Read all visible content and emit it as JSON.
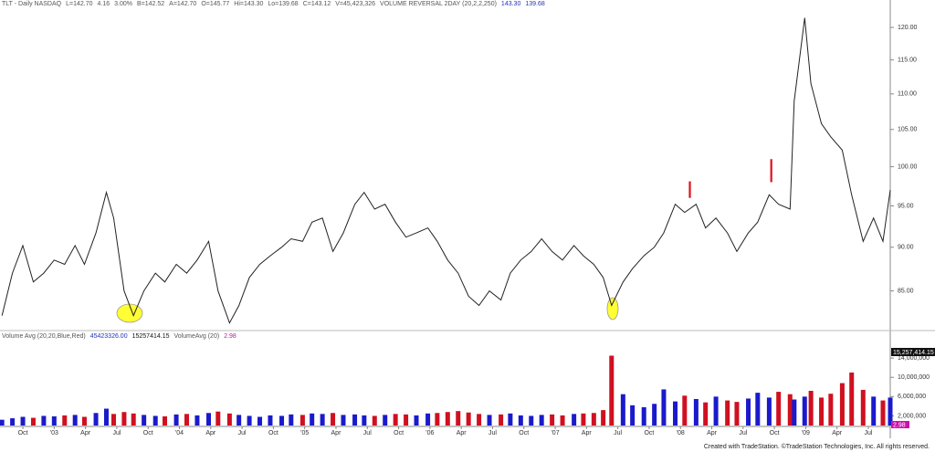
{
  "chart_data": {
    "type": "line",
    "header": [
      "TLT - Daily  NASDAQ",
      "L=142.70",
      "4.16",
      "3.00%",
      "B=142.52",
      "A=142.70",
      "O=145.77",
      "Hi=143.30",
      "Lo=139.68",
      "C=143.12",
      "V=45,423,326",
      "VOLUME REVERSAL 2DAY (20,2,2,250)",
      "143.30",
      "139.68"
    ],
    "log_scale": true,
    "line_color": "#222222",
    "x": [
      -2.0,
      -1.0,
      0,
      1.0,
      2.0,
      3.0,
      4.0,
      5.0,
      5.9,
      7.0,
      8.0,
      8.7,
      9.7,
      10.6,
      11.6,
      12.7,
      13.6,
      14.7,
      15.7,
      16.7,
      17.8,
      18.7,
      19.8,
      20.7,
      21.7,
      22.7,
      23.7,
      24.8,
      25.7,
      26.8,
      27.7,
      28.7,
      29.7,
      30.7,
      31.8,
      32.7,
      33.7,
      34.7,
      35.7,
      36.7,
      37.7,
      38.8,
      39.7,
      40.7,
      41.7,
      42.7,
      43.7,
      44.7,
      45.8,
      46.7,
      47.7,
      48.7,
      49.7,
      50.7,
      51.7,
      52.8,
      53.7,
      54.7,
      55.6,
      56.4,
      57.5,
      58.4,
      59.5,
      60.5,
      61.4,
      62.5,
      63.4,
      64.5,
      65.4,
      66.4,
      67.5,
      68.4,
      69.5,
      70.4,
      71.5,
      72.4,
      73.5,
      73.9,
      74.9,
      75.5,
      76.5,
      77.4,
      78.5,
      79.4,
      80.5,
      81.5,
      82.4,
      83.1
    ],
    "series": [
      {
        "values": [
          82.3,
          87,
          90.2,
          86,
          87,
          88.5,
          88,
          90.2,
          88,
          91.7,
          96.7,
          93.5,
          85,
          82.3,
          85,
          87,
          86,
          88,
          87,
          88.5,
          90.7,
          85,
          81.5,
          83.4,
          86.5,
          88,
          89,
          90,
          91,
          90.7,
          93,
          93.5,
          89.5,
          91.7,
          95.2,
          96.7,
          94.6,
          95.2,
          93,
          91.2,
          91.7,
          92.3,
          90.7,
          88.5,
          87,
          84.4,
          83.4,
          85,
          84,
          87,
          88.5,
          89.5,
          91,
          89.5,
          88.5,
          90.2,
          89,
          88,
          86.5,
          83.4,
          86,
          87.5,
          89,
          90,
          91.7,
          95.2,
          94.2,
          95.2,
          92.3,
          93.5,
          91.7,
          89.5,
          91.7,
          93,
          96.4,
          95.2,
          94.6,
          109,
          121.5,
          111.5,
          105.8,
          104,
          102.2,
          96.4,
          90.7,
          93.5,
          90.7,
          97
        ]
      }
    ],
    "signals": [
      {
        "x": 63.9,
        "low": 96,
        "high": 98.1
      },
      {
        "x": 71.7,
        "low": 98,
        "high": 101
      }
    ],
    "signal_color": "#e0101a",
    "xlim": [
      -2.19,
      83.1
    ],
    "xticks": [
      {
        "value": 0,
        "label": "Oct"
      },
      {
        "value": 3,
        "label": "'03"
      },
      {
        "value": 6,
        "label": "Apr"
      },
      {
        "value": 9,
        "label": "Jul"
      },
      {
        "value": 12,
        "label": "Oct"
      },
      {
        "value": 15,
        "label": "'04"
      },
      {
        "value": 18,
        "label": "Apr"
      },
      {
        "value": 21,
        "label": "Jul"
      },
      {
        "value": 24,
        "label": "Oct"
      },
      {
        "value": 27,
        "label": "'05"
      },
      {
        "value": 30,
        "label": "Apr"
      },
      {
        "value": 33,
        "label": "Jul"
      },
      {
        "value": 36,
        "label": "Oct"
      },
      {
        "value": 39,
        "label": "'06"
      },
      {
        "value": 42,
        "label": "Apr"
      },
      {
        "value": 45,
        "label": "Jul"
      },
      {
        "value": 48,
        "label": "Oct"
      },
      {
        "value": 51,
        "label": "'07"
      },
      {
        "value": 54,
        "label": "Apr"
      },
      {
        "value": 57,
        "label": "Jul"
      },
      {
        "value": 60,
        "label": "Oct"
      },
      {
        "value": 63,
        "label": "'08"
      },
      {
        "value": 66,
        "label": "Apr"
      },
      {
        "value": 69,
        "label": "Jul"
      },
      {
        "value": 72,
        "label": "Oct"
      },
      {
        "value": 75,
        "label": "'09"
      },
      {
        "value": 78,
        "label": "Apr"
      },
      {
        "value": 81,
        "label": "Jul"
      }
    ],
    "ylim": [
      80.7,
      123.2
    ],
    "yticks": [
      {
        "value": 85,
        "label": "85.00"
      },
      {
        "value": 90,
        "label": "90.00"
      },
      {
        "value": 95,
        "label": "95.00"
      },
      {
        "value": 100,
        "label": "100.00"
      },
      {
        "value": 105,
        "label": "105.00"
      },
      {
        "value": 110,
        "label": "110.00"
      },
      {
        "value": 115,
        "label": "115.00"
      },
      {
        "value": 120,
        "label": "120.00"
      }
    ],
    "volume": {
      "header": [
        "Volume Avg (20,20,Blue,Red)",
        "45423326.00",
        "15257414.15",
        "VolumeAvg (20)",
        "2.98"
      ],
      "last_label": "15,257,414.15",
      "ratio_label": "2.98",
      "up_color": "#1a1acc",
      "down_color": "#d01020",
      "values": [
        1200000,
        1500000,
        1800000,
        1600000,
        2000000,
        1900000,
        2100000,
        2200000,
        1800000,
        2600000,
        3500000,
        2400000,
        2800000,
        2500000,
        2200000,
        2000000,
        1900000,
        2300000,
        2400000,
        2100000,
        2600000,
        2900000,
        2500000,
        2200000,
        2000000,
        1800000,
        2100000,
        2000000,
        2300000,
        2200000,
        2500000,
        2400000,
        2600000,
        2200000,
        2300000,
        2100000,
        2000000,
        2200000,
        2400000,
        2300000,
        2100000,
        2500000,
        2600000,
        2800000,
        3000000,
        2700000,
        2400000,
        2200000,
        2300000,
        2500000,
        2100000,
        2000000,
        2200000,
        2300000,
        2100000,
        2400000,
        2500000,
        2600000,
        3200000,
        14500000,
        6500000,
        4200000,
        3800000,
        4500000,
        7500000,
        5000000,
        6200000,
        5500000,
        4800000,
        6000000,
        5200000,
        4900000,
        5600000,
        6800000,
        5800000,
        7000000,
        6500000,
        5400000,
        6000000,
        7200000,
        5800000,
        6600000,
        8800000,
        11000000,
        7400000,
        6000000,
        5200000,
        5800000
      ],
      "ylim": [
        0,
        16300000
      ],
      "yticks": [
        {
          "value": 2000000,
          "label": "2,000,000"
        },
        {
          "value": 6000000,
          "label": "6,000,000"
        },
        {
          "value": 10000000,
          "label": "10,000,000"
        },
        {
          "value": 14000000,
          "label": "14,000,000"
        }
      ]
    },
    "footer": "Created with TradeStation. ©TradeStation Technologies, Inc. All rights reserved."
  }
}
